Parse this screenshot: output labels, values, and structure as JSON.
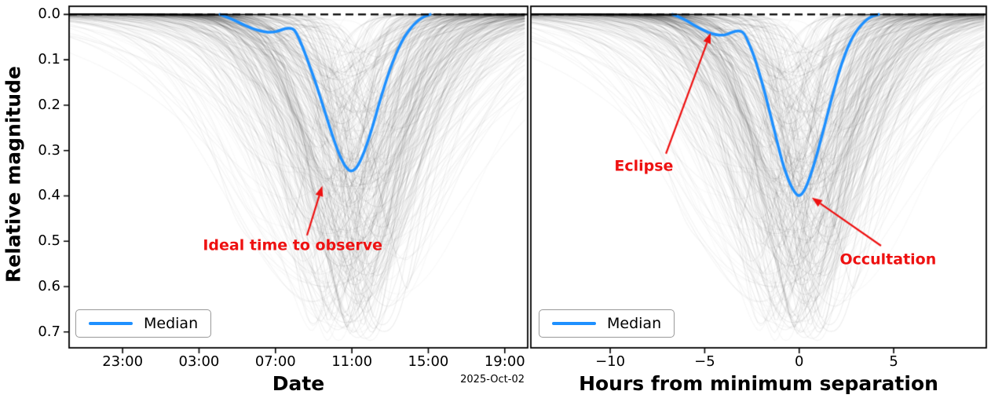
{
  "figure": {
    "background": "#ffffff",
    "ylabel": "Relative magnitude",
    "colors": {
      "median": "#1e90ff",
      "annotation": "#ee1111",
      "samples": "#000000",
      "dashed_line": "#000000",
      "axis": "#000000"
    },
    "samples": {
      "count": 330,
      "seed": 11
    }
  },
  "chart_data": [
    {
      "type": "line",
      "panel": "left",
      "xlabel": "Date",
      "x_offset_label": "2025-Oct-02",
      "xlim": [
        -14.8,
        9.2
      ],
      "ylim": [
        0.735,
        -0.018
      ],
      "dashed_reference_y": 0.0,
      "x_ticks": [
        {
          "t": -12,
          "label": "23:00"
        },
        {
          "t": -8,
          "label": "03:00"
        },
        {
          "t": -4,
          "label": "07:00"
        },
        {
          "t": 0,
          "label": "11:00"
        },
        {
          "t": 4,
          "label": "15:00"
        },
        {
          "t": 8,
          "label": "19:00"
        }
      ],
      "y_ticks": [
        {
          "v": 0.0,
          "label": "0.0"
        },
        {
          "v": 0.1,
          "label": "0.1"
        },
        {
          "v": 0.2,
          "label": "0.2"
        },
        {
          "v": 0.3,
          "label": "0.3"
        },
        {
          "v": 0.4,
          "label": "0.4"
        },
        {
          "v": 0.5,
          "label": "0.5"
        },
        {
          "v": 0.6,
          "label": "0.6"
        },
        {
          "v": 0.7,
          "label": "0.7"
        }
      ],
      "show_y_tick_labels": true,
      "legend": {
        "label": "Median"
      },
      "median_series": {
        "name": "Median",
        "points": [
          [
            -6.9,
            0
          ],
          [
            -6.4,
            0.008
          ],
          [
            -5.9,
            0.018
          ],
          [
            -5.4,
            0.028
          ],
          [
            -5,
            0.034
          ],
          [
            -4.6,
            0.038
          ],
          [
            -4.2,
            0.04
          ],
          [
            -3.8,
            0.036
          ],
          [
            -3.5,
            0.031
          ],
          [
            -3.2,
            0.03
          ],
          [
            -3,
            0.034
          ],
          [
            -2.8,
            0.05
          ],
          [
            -2.5,
            0.08
          ],
          [
            -2.2,
            0.115
          ],
          [
            -1.9,
            0.15
          ],
          [
            -1.6,
            0.19
          ],
          [
            -1.3,
            0.23
          ],
          [
            -1,
            0.27
          ],
          [
            -0.7,
            0.305
          ],
          [
            -0.45,
            0.328
          ],
          [
            -0.25,
            0.34
          ],
          [
            -0.1,
            0.345
          ],
          [
            0.05,
            0.345
          ],
          [
            0.25,
            0.338
          ],
          [
            0.5,
            0.318
          ],
          [
            0.8,
            0.285
          ],
          [
            1.1,
            0.245
          ],
          [
            1.4,
            0.2
          ],
          [
            1.7,
            0.158
          ],
          [
            2,
            0.12
          ],
          [
            2.3,
            0.088
          ],
          [
            2.6,
            0.06
          ],
          [
            2.9,
            0.04
          ],
          [
            3.2,
            0.024
          ],
          [
            3.5,
            0.012
          ],
          [
            3.8,
            0.004
          ],
          [
            4.1,
            0
          ]
        ]
      },
      "annotations": [
        {
          "text": "Ideal time to observe",
          "text_pos": [
            -3.1,
            0.51
          ],
          "arrow_from": [
            -2.35,
            0.487
          ],
          "arrow_to": [
            -1.55,
            0.378
          ]
        }
      ]
    },
    {
      "type": "line",
      "panel": "right",
      "xlabel": "Hours from minimum separation",
      "xlim": [
        -14.2,
        9.9
      ],
      "ylim": [
        0.735,
        -0.018
      ],
      "dashed_reference_y": 0.0,
      "x_ticks": [
        {
          "t": -10,
          "label": "−10"
        },
        {
          "t": -5,
          "label": "−5"
        },
        {
          "t": 0,
          "label": "0"
        },
        {
          "t": 5,
          "label": "5"
        }
      ],
      "y_ticks": [],
      "show_y_tick_labels": false,
      "legend": {
        "label": "Median"
      },
      "median_series": {
        "name": "Median",
        "points": [
          [
            -6.7,
            0
          ],
          [
            -6.2,
            0.008
          ],
          [
            -5.7,
            0.02
          ],
          [
            -5.2,
            0.032
          ],
          [
            -4.8,
            0.04
          ],
          [
            -4.4,
            0.045
          ],
          [
            -4,
            0.046
          ],
          [
            -3.7,
            0.042
          ],
          [
            -3.4,
            0.037
          ],
          [
            -3.1,
            0.036
          ],
          [
            -2.9,
            0.042
          ],
          [
            -2.7,
            0.06
          ],
          [
            -2.4,
            0.09
          ],
          [
            -2.1,
            0.13
          ],
          [
            -1.8,
            0.175
          ],
          [
            -1.5,
            0.225
          ],
          [
            -1.2,
            0.275
          ],
          [
            -0.9,
            0.325
          ],
          [
            -0.6,
            0.362
          ],
          [
            -0.35,
            0.385
          ],
          [
            -0.15,
            0.397
          ],
          [
            0,
            0.4
          ],
          [
            0.15,
            0.396
          ],
          [
            0.35,
            0.382
          ],
          [
            0.6,
            0.355
          ],
          [
            0.9,
            0.315
          ],
          [
            1.2,
            0.268
          ],
          [
            1.5,
            0.22
          ],
          [
            1.8,
            0.172
          ],
          [
            2.1,
            0.128
          ],
          [
            2.4,
            0.09
          ],
          [
            2.7,
            0.06
          ],
          [
            3,
            0.038
          ],
          [
            3.3,
            0.022
          ],
          [
            3.6,
            0.01
          ],
          [
            3.9,
            0.003
          ],
          [
            4.2,
            0
          ]
        ]
      },
      "annotations": [
        {
          "text": "Eclipse",
          "text_pos": [
            -8.22,
            0.335
          ],
          "arrow_from": [
            -7.05,
            0.307
          ],
          "arrow_to": [
            -4.69,
            0.041
          ]
        },
        {
          "text": "Occultation",
          "text_pos": [
            4.7,
            0.541
          ],
          "arrow_from": [
            4.33,
            0.51
          ],
          "arrow_to": [
            0.67,
            0.404
          ]
        }
      ]
    }
  ]
}
